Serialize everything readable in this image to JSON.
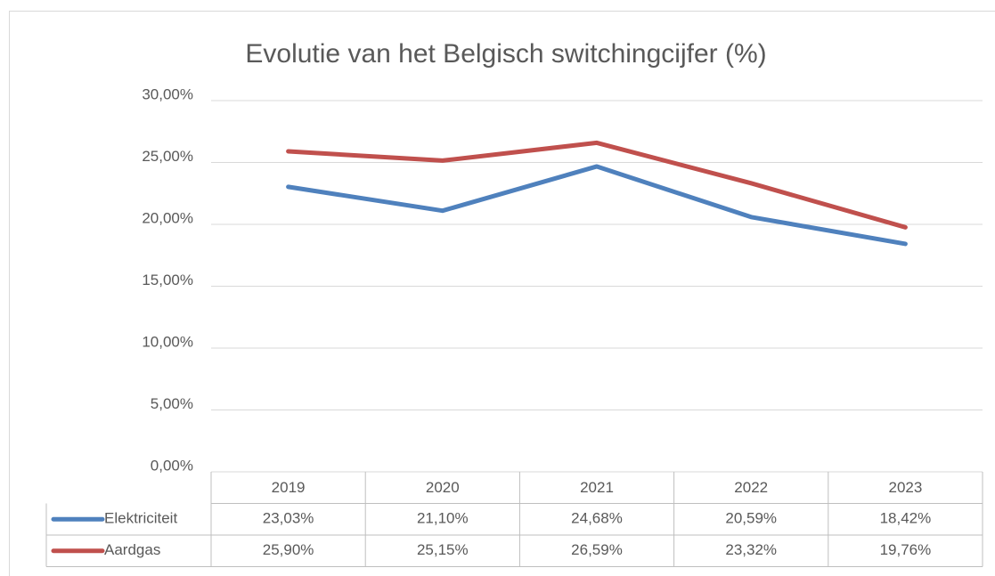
{
  "chart_data": {
    "type": "line",
    "title": "Evolutie van het Belgisch switchingcijfer (%)",
    "categories": [
      "2019",
      "2020",
      "2021",
      "2022",
      "2023"
    ],
    "series": [
      {
        "name": "Elektriciteit",
        "color": "#4f81bd",
        "values": [
          23.03,
          21.1,
          24.68,
          20.59,
          18.42
        ],
        "value_labels": [
          "23,03%",
          "21,10%",
          "24,68%",
          "20,59%",
          "18,42%"
        ]
      },
      {
        "name": "Aardgas",
        "color": "#c0504d",
        "values": [
          25.9,
          25.15,
          26.59,
          23.32,
          19.76
        ],
        "value_labels": [
          "25,90%",
          "25,15%",
          "26,59%",
          "23,32%",
          "19,76%"
        ]
      }
    ],
    "ylim": [
      0,
      30
    ],
    "yticks": [
      {
        "value": 0,
        "label": "0,00%"
      },
      {
        "value": 5,
        "label": "5,00%"
      },
      {
        "value": 10,
        "label": "10,00%"
      },
      {
        "value": 15,
        "label": "15,00%"
      },
      {
        "value": 20,
        "label": "20,00%"
      },
      {
        "value": 25,
        "label": "25,00%"
      },
      {
        "value": 30,
        "label": "30,00%"
      }
    ],
    "grid": true,
    "data_table": true
  }
}
